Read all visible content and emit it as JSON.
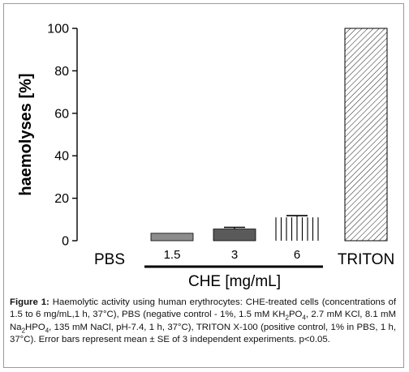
{
  "chart_data": {
    "type": "bar",
    "categories": [
      "PBS",
      "1.5",
      "3",
      "6",
      "TRITON"
    ],
    "values": [
      0,
      3.5,
      5.5,
      11,
      100
    ],
    "errors": [
      0,
      0,
      0.8,
      0.8,
      0
    ],
    "ylabel": "haemolyses [%]",
    "xlabel": "CHE [mg/mL]",
    "ylim": [
      0,
      100
    ],
    "yticks": [
      "0",
      "20",
      "40",
      "60",
      "80",
      "100"
    ],
    "grid": false,
    "colors": {
      "1.5": "#8c8c8c",
      "3": "#5a5a5a",
      "6": "vertical-stripes",
      "TRITON": "diagonal-hatch",
      "axis": "#000000"
    }
  },
  "caption": {
    "label": "Figure 1:",
    "text_1": " Haemolytic activity using human erythrocytes: CHE-treated cells (concentrations of 1.5 to 6 mg/mL,1 h, 37°C), PBS (negative control - 1%, 1.5 mM KH",
    "sub_1": "2",
    "text_2": "PO",
    "sub_2": "4",
    "text_3": ", 2.7 mM KCl, 8.1 mM Na",
    "sub_3": "2",
    "text_4": "HPO",
    "sub_4": "4",
    "text_5": ", 135 mM NaCl, pH-7.4, 1 h, 37°C), TRITON X-100 (positive control, 1% in PBS, 1 h, 37°C). Error bars represent mean ± SE of 3 independent experiments. p<0.05."
  }
}
